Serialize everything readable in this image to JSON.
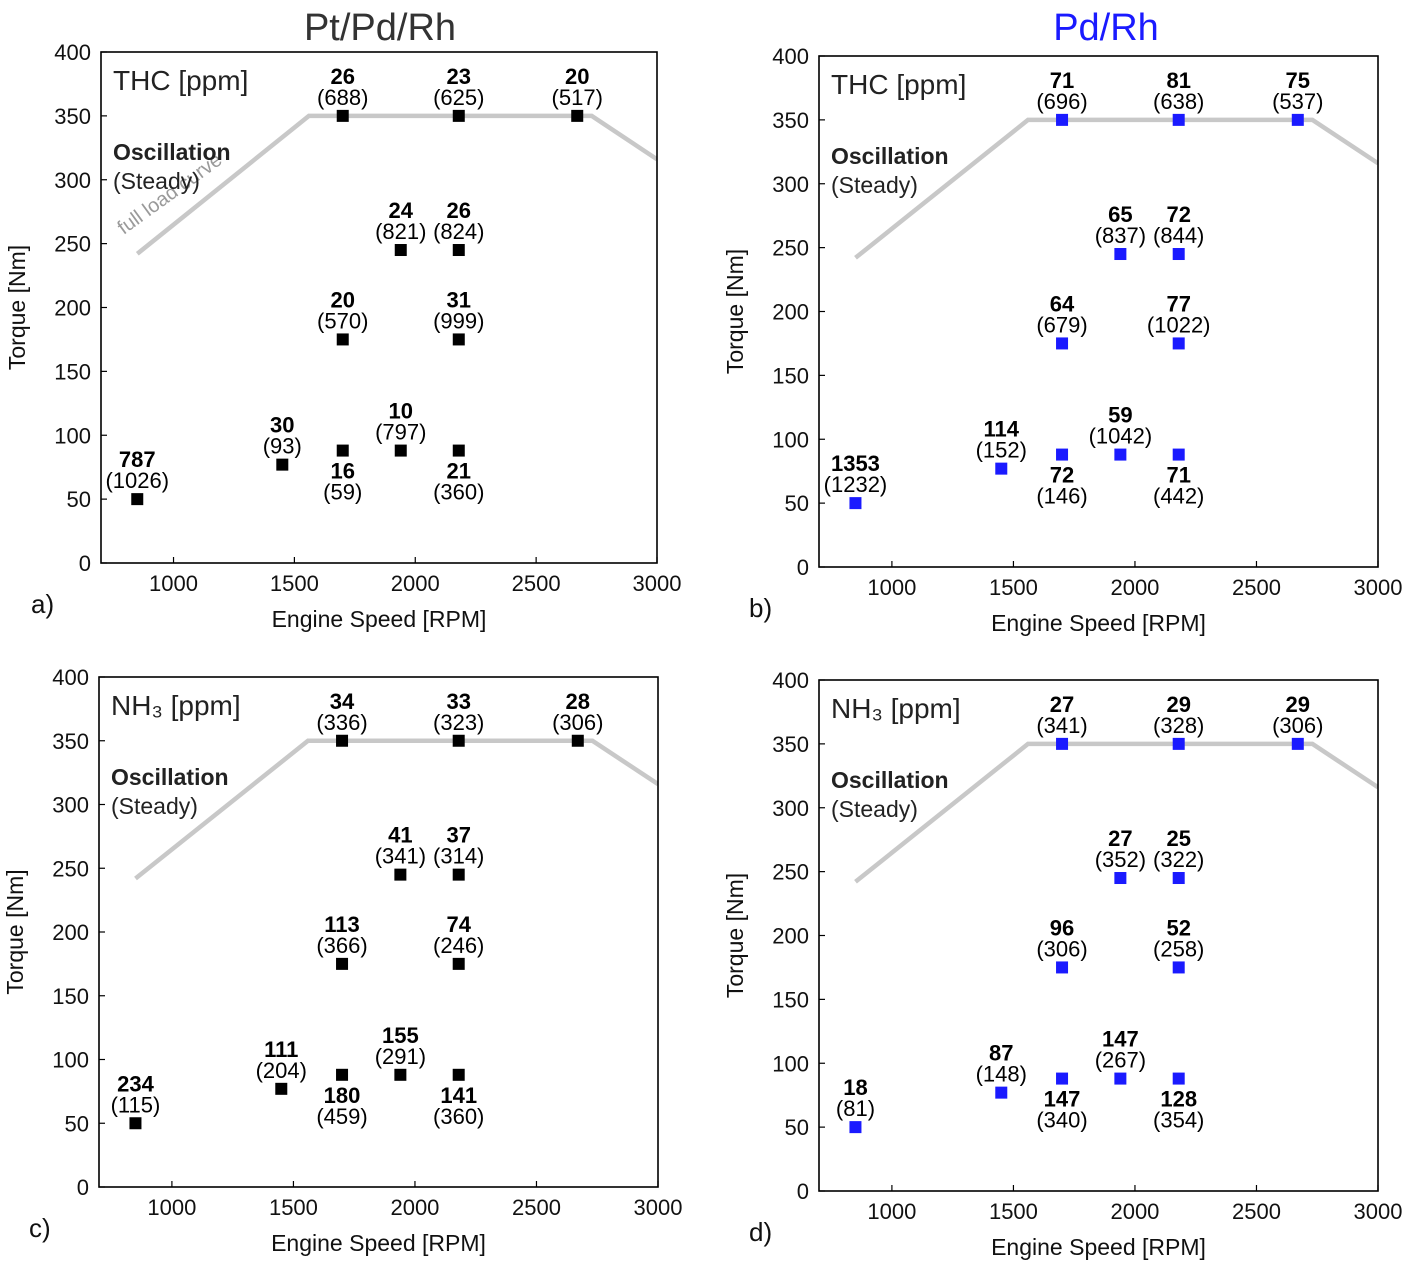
{
  "column_titles": [
    {
      "text": "Pt/Pd/Rh",
      "color": "#333333"
    },
    {
      "text": "Pd/Rh",
      "color": "#1a1aff"
    }
  ],
  "full_load_curve_label": "full load curve",
  "full_load_curve": {
    "rpm": [
      850,
      1560,
      2730,
      3000
    ],
    "torque": [
      242,
      350,
      350,
      316
    ],
    "color": "#c8c8c8"
  },
  "chart_data": [
    {
      "type": "scatter",
      "panel": "a)",
      "quantity": "THC [ppm]",
      "annotation_title": "Oscillation",
      "annotation_subtitle": "(Steady)",
      "xlabel": "Engine Speed [RPM]",
      "ylabel": "Torque [Nm]",
      "xlim": [
        700,
        3000
      ],
      "ylim": [
        0,
        400
      ],
      "xticks": [
        1000,
        1500,
        2000,
        2500,
        3000
      ],
      "yticks": [
        0,
        50,
        100,
        150,
        200,
        250,
        300,
        350,
        400
      ],
      "marker_color": "#000000",
      "show_curve_label": true,
      "points": [
        {
          "rpm": 850,
          "torque": 50,
          "value": "787",
          "paren": "(1026)",
          "pos": "above"
        },
        {
          "rpm": 1450,
          "torque": 77,
          "value": "30",
          "paren": "(93)",
          "pos": "above"
        },
        {
          "rpm": 1700,
          "torque": 88,
          "value": "16",
          "paren": "(59)",
          "pos": "below"
        },
        {
          "rpm": 1940,
          "torque": 88,
          "value": "10",
          "paren": "(797)",
          "pos": "above"
        },
        {
          "rpm": 2180,
          "torque": 88,
          "value": "21",
          "paren": "(360)",
          "pos": "below"
        },
        {
          "rpm": 1700,
          "torque": 175,
          "value": "20",
          "paren": "(570)",
          "pos": "above"
        },
        {
          "rpm": 2180,
          "torque": 175,
          "value": "31",
          "paren": "(999)",
          "pos": "above"
        },
        {
          "rpm": 1940,
          "torque": 245,
          "value": "24",
          "paren": "(821)",
          "pos": "above"
        },
        {
          "rpm": 2180,
          "torque": 245,
          "value": "26",
          "paren": "(824)",
          "pos": "above"
        },
        {
          "rpm": 1700,
          "torque": 350,
          "value": "26",
          "paren": "(688)",
          "pos": "above"
        },
        {
          "rpm": 2180,
          "torque": 350,
          "value": "23",
          "paren": "(625)",
          "pos": "above"
        },
        {
          "rpm": 2670,
          "torque": 350,
          "value": "20",
          "paren": "(517)",
          "pos": "above"
        }
      ]
    },
    {
      "type": "scatter",
      "panel": "b)",
      "quantity": "THC [ppm]",
      "annotation_title": "Oscillation",
      "annotation_subtitle": "(Steady)",
      "xlabel": "Engine Speed [RPM]",
      "ylabel": "Torque [Nm]",
      "xlim": [
        700,
        3000
      ],
      "ylim": [
        0,
        400
      ],
      "xticks": [
        1000,
        1500,
        2000,
        2500,
        3000
      ],
      "yticks": [
        0,
        50,
        100,
        150,
        200,
        250,
        300,
        350,
        400
      ],
      "marker_color": "#1a1aff",
      "show_curve_label": false,
      "points": [
        {
          "rpm": 850,
          "torque": 50,
          "value": "1353",
          "paren": "(1232)",
          "pos": "above"
        },
        {
          "rpm": 1450,
          "torque": 77,
          "value": "114",
          "paren": "(152)",
          "pos": "above"
        },
        {
          "rpm": 1700,
          "torque": 88,
          "value": "72",
          "paren": "(146)",
          "pos": "below"
        },
        {
          "rpm": 1940,
          "torque": 88,
          "value": "59",
          "paren": "(1042)",
          "pos": "above"
        },
        {
          "rpm": 2180,
          "torque": 88,
          "value": "71",
          "paren": "(442)",
          "pos": "below"
        },
        {
          "rpm": 1700,
          "torque": 175,
          "value": "64",
          "paren": "(679)",
          "pos": "above"
        },
        {
          "rpm": 2180,
          "torque": 175,
          "value": "77",
          "paren": "(1022)",
          "pos": "above"
        },
        {
          "rpm": 1940,
          "torque": 245,
          "value": "65",
          "paren": "(837)",
          "pos": "above"
        },
        {
          "rpm": 2180,
          "torque": 245,
          "value": "72",
          "paren": "(844)",
          "pos": "above"
        },
        {
          "rpm": 1700,
          "torque": 350,
          "value": "71",
          "paren": "(696)",
          "pos": "above"
        },
        {
          "rpm": 2180,
          "torque": 350,
          "value": "81",
          "paren": "(638)",
          "pos": "above"
        },
        {
          "rpm": 2670,
          "torque": 350,
          "value": "75",
          "paren": "(537)",
          "pos": "above"
        }
      ]
    },
    {
      "type": "scatter",
      "panel": "c)",
      "quantity": "NH₃ [ppm]",
      "annotation_title": "Oscillation",
      "annotation_subtitle": "(Steady)",
      "xlabel": "Engine Speed [RPM]",
      "ylabel": "Torque [Nm]",
      "xlim": [
        700,
        3000
      ],
      "ylim": [
        0,
        400
      ],
      "xticks": [
        1000,
        1500,
        2000,
        2500,
        3000
      ],
      "yticks": [
        0,
        50,
        100,
        150,
        200,
        250,
        300,
        350,
        400
      ],
      "marker_color": "#000000",
      "show_curve_label": false,
      "points": [
        {
          "rpm": 850,
          "torque": 50,
          "value": "234",
          "paren": "(115)",
          "pos": "above"
        },
        {
          "rpm": 1450,
          "torque": 77,
          "value": "111",
          "paren": "(204)",
          "pos": "above"
        },
        {
          "rpm": 1700,
          "torque": 88,
          "value": "180",
          "paren": "(459)",
          "pos": "below"
        },
        {
          "rpm": 1940,
          "torque": 88,
          "value": "155",
          "paren": "(291)",
          "pos": "above"
        },
        {
          "rpm": 2180,
          "torque": 88,
          "value": "141",
          "paren": "(360)",
          "pos": "below"
        },
        {
          "rpm": 1700,
          "torque": 175,
          "value": "113",
          "paren": "(366)",
          "pos": "above"
        },
        {
          "rpm": 2180,
          "torque": 175,
          "value": "74",
          "paren": "(246)",
          "pos": "above"
        },
        {
          "rpm": 1940,
          "torque": 245,
          "value": "41",
          "paren": "(341)",
          "pos": "above"
        },
        {
          "rpm": 2180,
          "torque": 245,
          "value": "37",
          "paren": "(314)",
          "pos": "above"
        },
        {
          "rpm": 1700,
          "torque": 350,
          "value": "34",
          "paren": "(336)",
          "pos": "above"
        },
        {
          "rpm": 2180,
          "torque": 350,
          "value": "33",
          "paren": "(323)",
          "pos": "above"
        },
        {
          "rpm": 2670,
          "torque": 350,
          "value": "28",
          "paren": "(306)",
          "pos": "above"
        }
      ]
    },
    {
      "type": "scatter",
      "panel": "d)",
      "quantity": "NH₃ [ppm]",
      "annotation_title": "Oscillation",
      "annotation_subtitle": "(Steady)",
      "xlabel": "Engine Speed [RPM]",
      "ylabel": "Torque [Nm]",
      "xlim": [
        700,
        3000
      ],
      "ylim": [
        0,
        400
      ],
      "xticks": [
        1000,
        1500,
        2000,
        2500,
        3000
      ],
      "yticks": [
        0,
        50,
        100,
        150,
        200,
        250,
        300,
        350,
        400
      ],
      "marker_color": "#1a1aff",
      "show_curve_label": false,
      "points": [
        {
          "rpm": 850,
          "torque": 50,
          "value": "18",
          "paren": "(81)",
          "pos": "above"
        },
        {
          "rpm": 1450,
          "torque": 77,
          "value": "87",
          "paren": "(148)",
          "pos": "above"
        },
        {
          "rpm": 1700,
          "torque": 88,
          "value": "147",
          "paren": "(340)",
          "pos": "below"
        },
        {
          "rpm": 1940,
          "torque": 88,
          "value": "147",
          "paren": "(267)",
          "pos": "above"
        },
        {
          "rpm": 2180,
          "torque": 88,
          "value": "128",
          "paren": "(354)",
          "pos": "below"
        },
        {
          "rpm": 1700,
          "torque": 175,
          "value": "96",
          "paren": "(306)",
          "pos": "above"
        },
        {
          "rpm": 2180,
          "torque": 175,
          "value": "52",
          "paren": "(258)",
          "pos": "above"
        },
        {
          "rpm": 1940,
          "torque": 245,
          "value": "27",
          "paren": "(352)",
          "pos": "above"
        },
        {
          "rpm": 2180,
          "torque": 245,
          "value": "25",
          "paren": "(322)",
          "pos": "above"
        },
        {
          "rpm": 1700,
          "torque": 350,
          "value": "27",
          "paren": "(341)",
          "pos": "above"
        },
        {
          "rpm": 2180,
          "torque": 350,
          "value": "29",
          "paren": "(328)",
          "pos": "above"
        },
        {
          "rpm": 2670,
          "torque": 350,
          "value": "29",
          "paren": "(306)",
          "pos": "above"
        }
      ]
    }
  ]
}
